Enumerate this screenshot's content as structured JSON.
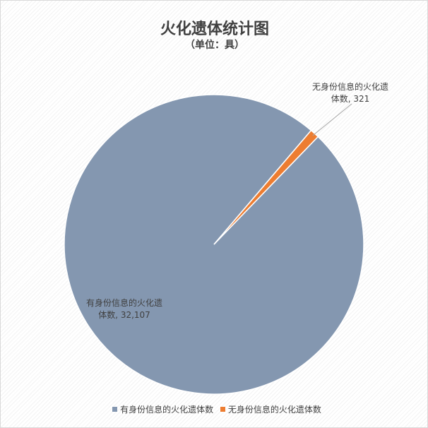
{
  "chart_data": {
    "type": "pie",
    "title": "火化遗体统计图",
    "subtitle": "（单位：具）",
    "categories": [
      "有身份信息的火化遗体数",
      "无身份信息的火化遗体数"
    ],
    "values": [
      32107,
      321
    ],
    "data_labels": [
      {
        "line1": "有身份信息的火化遗",
        "line2": "体数, 32,107"
      },
      {
        "line1": "无身份信息的火化遗",
        "line2": "体数, 321"
      }
    ],
    "colors": [
      "#8497B0",
      "#ED7D31"
    ],
    "legend_position": "bottom"
  }
}
